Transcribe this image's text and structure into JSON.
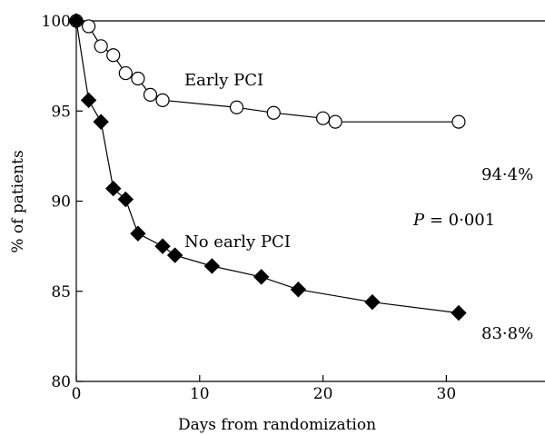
{
  "chart_data": {
    "type": "line",
    "xlabel": "Days from randomization",
    "ylabel": "% of patients",
    "xlim": [
      0,
      38
    ],
    "ylim": [
      80,
      100
    ],
    "x_ticks": [
      0,
      10,
      20,
      30
    ],
    "y_ticks": [
      80,
      85,
      90,
      95,
      100
    ],
    "series": [
      {
        "name": "Early PCI",
        "marker": "circle-open",
        "end_label": "94·4%",
        "x": [
          0,
          1,
          2,
          3,
          4,
          5,
          6,
          7,
          13,
          16,
          20,
          21,
          31
        ],
        "y": [
          100,
          99.7,
          98.6,
          98.1,
          97.1,
          96.8,
          95.9,
          95.6,
          95.2,
          94.9,
          94.6,
          94.4,
          94.4
        ]
      },
      {
        "name": "No early PCI",
        "marker": "diamond-filled",
        "end_label": "83·8%",
        "x": [
          0,
          1,
          2,
          3,
          4,
          5,
          7,
          8,
          11,
          15,
          18,
          24,
          31
        ],
        "y": [
          100,
          95.6,
          94.4,
          90.7,
          90.1,
          88.2,
          87.5,
          87.0,
          86.4,
          85.8,
          85.1,
          84.4,
          83.8
        ]
      }
    ],
    "annotation": {
      "p_label": "P",
      "p_text": " = 0·001"
    }
  }
}
